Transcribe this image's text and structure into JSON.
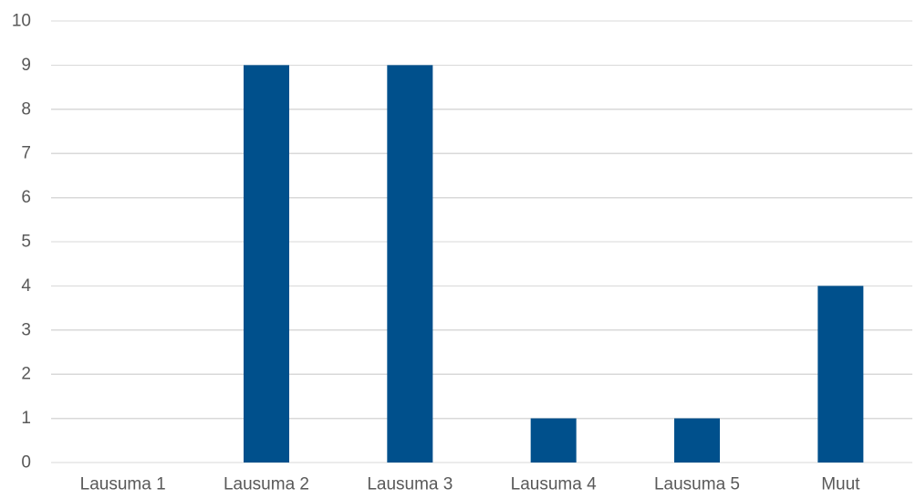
{
  "chart_data": {
    "type": "bar",
    "title": "",
    "xlabel": "",
    "ylabel": "",
    "categories": [
      "Lausuma 1",
      "Lausuma 2",
      "Lausuma 3",
      "Lausuma 4",
      "Lausuma 5",
      "Muut"
    ],
    "values": [
      0,
      9,
      9,
      1,
      1,
      4
    ],
    "ylim": [
      0,
      10
    ],
    "yticks": [
      "0",
      "1",
      "2",
      "3",
      "4",
      "5",
      "6",
      "7",
      "8",
      "9",
      "10"
    ],
    "grid": true,
    "legend": "none",
    "colors": {
      "bar": "#00508c",
      "grid": "#d9d9d9",
      "text": "#595959"
    }
  }
}
